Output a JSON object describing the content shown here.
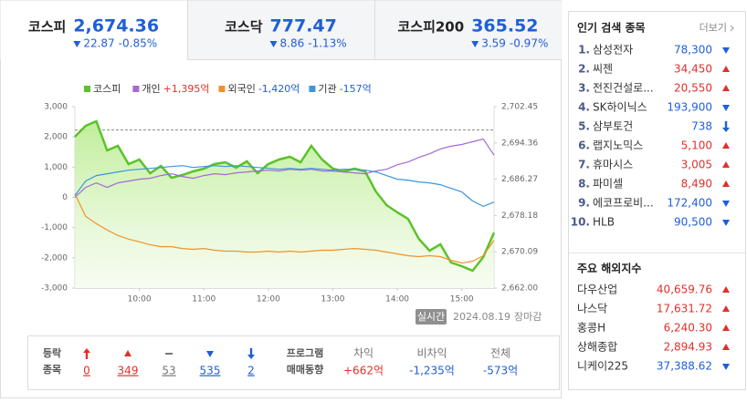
{
  "tabs": [
    {
      "name": "코스피",
      "value": "2,674.36",
      "direction": "down",
      "change": "22.87",
      "rate": "-0.85%",
      "active": true
    },
    {
      "name": "코스닥",
      "value": "777.47",
      "direction": "down",
      "change": "8.86",
      "rate": "-1.13%",
      "active": false
    },
    {
      "name": "코스피200",
      "value": "365.52",
      "direction": "down",
      "change": "3.59",
      "rate": "-0.97%",
      "active": false
    }
  ],
  "chart_data": {
    "type": "line",
    "x": [
      "09:00",
      "09:10",
      "09:20",
      "09:30",
      "09:40",
      "09:50",
      "10:00",
      "10:10",
      "10:20",
      "10:30",
      "10:40",
      "10:50",
      "11:00",
      "11:10",
      "11:20",
      "11:30",
      "11:40",
      "11:50",
      "12:00",
      "12:10",
      "12:20",
      "12:30",
      "12:40",
      "12:50",
      "13:00",
      "13:10",
      "13:20",
      "13:30",
      "13:40",
      "13:50",
      "14:00",
      "14:10",
      "14:20",
      "14:30",
      "14:40",
      "14:50",
      "15:00",
      "15:10",
      "15:20",
      "15:30"
    ],
    "xlim": [
      "09:00",
      "15:30"
    ],
    "xticks": [
      "10:00",
      "11:00",
      "12:00",
      "13:00",
      "14:00",
      "15:00"
    ],
    "ylim": [
      -3000,
      3000
    ],
    "yticks": [
      {
        "value": 3000,
        "label": "3,000"
      },
      {
        "value": 2000,
        "label": "2,000"
      },
      {
        "value": 1000,
        "label": "1,000"
      },
      0,
      {
        "value": -1000,
        "label": "-1,000"
      },
      {
        "value": -2000,
        "label": "-2,000"
      },
      {
        "value": -3000,
        "label": "-3,000"
      }
    ],
    "y2lim": [
      2662.0,
      2702.45
    ],
    "y2ticks": [
      {
        "value": 2702.45,
        "label": "2,702.45"
      },
      {
        "value": 2694.36,
        "label": "2,694.36"
      },
      {
        "value": 2686.27,
        "label": "2,686.27"
      },
      {
        "value": 2678.18,
        "label": "2,678.18"
      },
      {
        "value": 2670.09,
        "label": "2,670.09"
      },
      {
        "value": 2662,
        "label": "2,662.00"
      }
    ],
    "y2_reference": 2697.23,
    "series": [
      {
        "name": "코스피",
        "color": "#5cc22a",
        "axis": "y2",
        "area": true,
        "values": [
          2695.75,
          2698.19,
          2699.2,
          2692.7,
          2693.71,
          2689.65,
          2690.67,
          2687.62,
          2689.24,
          2686.6,
          2687.21,
          2688.02,
          2688.63,
          2689.65,
          2690.06,
          2688.84,
          2690.26,
          2687.62,
          2689.65,
          2690.67,
          2691.28,
          2690.06,
          2693.71,
          2690.67,
          2688.63,
          2688.02,
          2688.63,
          2688.02,
          2683.55,
          2680.5,
          2678.87,
          2677.45,
          2672.98,
          2670.34,
          2671.76,
          2667.69,
          2666.88,
          2665.86,
          2668.91,
          2674.36
        ]
      },
      {
        "name": "개인",
        "legend_value": "+1,395억",
        "color": "#a36ad6",
        "values": [
          0,
          330,
          480,
          330,
          480,
          540,
          600,
          630,
          720,
          780,
          690,
          630,
          720,
          780,
          750,
          810,
          840,
          870,
          900,
          870,
          930,
          900,
          930,
          870,
          870,
          840,
          810,
          780,
          870,
          930,
          1080,
          1170,
          1320,
          1440,
          1600,
          1690,
          1750,
          1840,
          1930,
          1395
        ]
      },
      {
        "name": "외국인",
        "legend_value": "-1,420억",
        "color": "#f0922b",
        "values": [
          120,
          -630,
          -870,
          -1080,
          -1260,
          -1380,
          -1470,
          -1570,
          -1630,
          -1630,
          -1690,
          -1720,
          -1690,
          -1750,
          -1780,
          -1780,
          -1810,
          -1810,
          -1780,
          -1810,
          -1780,
          -1810,
          -1780,
          -1750,
          -1750,
          -1720,
          -1690,
          -1720,
          -1750,
          -1810,
          -1870,
          -1930,
          -1960,
          -1930,
          -1960,
          -2080,
          -2170,
          -2110,
          -1930,
          -1420
        ]
      },
      {
        "name": "기관",
        "legend_value": "-157억",
        "color": "#3a96df",
        "values": [
          60,
          540,
          720,
          780,
          840,
          900,
          930,
          960,
          990,
          1020,
          1050,
          990,
          1020,
          1050,
          1020,
          1050,
          1020,
          990,
          960,
          930,
          960,
          930,
          960,
          930,
          900,
          930,
          930,
          900,
          840,
          720,
          600,
          570,
          510,
          480,
          420,
          300,
          180,
          -120,
          -300,
          -157
        ]
      }
    ]
  },
  "chart_footer": {
    "badge": "실시간",
    "date": "2024.08.19",
    "status": "장마감"
  },
  "market_stats": {
    "labels": [
      "등락",
      "종목"
    ],
    "items": [
      {
        "kind": "upper_limit",
        "count": "0"
      },
      {
        "kind": "up",
        "count": "349"
      },
      {
        "kind": "flat",
        "count": "53"
      },
      {
        "kind": "down",
        "count": "535"
      },
      {
        "kind": "lower_limit",
        "count": "2"
      }
    ],
    "program_title": [
      "프로그램",
      "매매동향"
    ],
    "program": [
      {
        "label": "차익",
        "value": "+662억"
      },
      {
        "label": "비차익",
        "value": "-1,235억"
      },
      {
        "label": "전체",
        "value": "-573억"
      }
    ]
  },
  "popular": {
    "title": "인기 검색 종목",
    "more": "더보기",
    "items": [
      {
        "rank": "1.",
        "name": "삼성전자",
        "price": "78,300",
        "direction": "down"
      },
      {
        "rank": "2.",
        "name": "씨젠",
        "price": "34,450",
        "direction": "up"
      },
      {
        "rank": "3.",
        "name": "전진건설로...",
        "price": "20,550",
        "direction": "up"
      },
      {
        "rank": "4.",
        "name": "SK하이닉스",
        "price": "193,900",
        "direction": "down"
      },
      {
        "rank": "5.",
        "name": "삼부토건",
        "price": "738",
        "direction": "lower_limit"
      },
      {
        "rank": "6.",
        "name": "랩지노믹스",
        "price": "5,100",
        "direction": "up"
      },
      {
        "rank": "7.",
        "name": "휴마시스",
        "price": "3,005",
        "direction": "up"
      },
      {
        "rank": "8.",
        "name": "파미셀",
        "price": "8,490",
        "direction": "up"
      },
      {
        "rank": "9.",
        "name": "에코프로비...",
        "price": "172,400",
        "direction": "down"
      },
      {
        "rank": "10.",
        "name": "HLB",
        "price": "90,500",
        "direction": "down"
      }
    ]
  },
  "overseas": {
    "title": "주요 해외지수",
    "items": [
      {
        "name": "다우산업",
        "value": "40,659.76",
        "direction": "up"
      },
      {
        "name": "나스닥",
        "value": "17,631.72",
        "direction": "up"
      },
      {
        "name": "홍콩H",
        "value": "6,240.30",
        "direction": "up"
      },
      {
        "name": "상해종합",
        "value": "2,894.93",
        "direction": "up"
      },
      {
        "name": "니케이225",
        "value": "37,388.62",
        "direction": "down"
      }
    ]
  }
}
